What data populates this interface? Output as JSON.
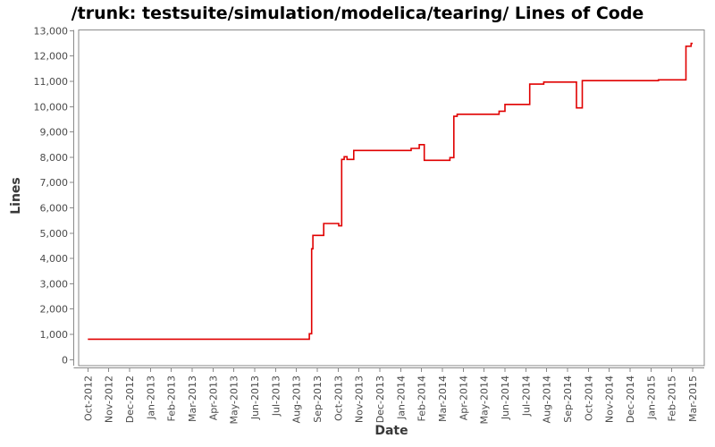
{
  "page": {
    "background": "#ffffff"
  },
  "chart_data": {
    "type": "line",
    "title": "/trunk: testsuite/simulation/modelica/tearing/ Lines of Code",
    "xlabel": "Date",
    "ylabel": "Lines",
    "ylim": [
      0,
      13000
    ],
    "y_tick_step": 1000,
    "y_tick_labels": [
      "0",
      "1,000",
      "2,000",
      "3,000",
      "4,000",
      "5,000",
      "6,000",
      "7,000",
      "8,000",
      "9,000",
      "10,000",
      "11,000",
      "12,000",
      "13,000"
    ],
    "x_tick_labels": [
      "Oct-2012",
      "Nov-2012",
      "Dec-2012",
      "Jan-2013",
      "Feb-2013",
      "Mar-2013",
      "Apr-2013",
      "May-2013",
      "Jun-2013",
      "Jul-2013",
      "Aug-2013",
      "Sep-2013",
      "Oct-2013",
      "Nov-2013",
      "Dec-2013",
      "Jan-2014",
      "Feb-2014",
      "Mar-2014",
      "Apr-2014",
      "May-2014",
      "Jun-2014",
      "Jul-2014",
      "Aug-2014",
      "Sep-2014",
      "Oct-2014",
      "Nov-2014",
      "Dec-2014",
      "Jan-2015",
      "Feb-2015",
      "Mar-2015"
    ],
    "grid": false,
    "legend": false,
    "axis_color": "#8a8a8a",
    "tick_label_color": "#4a4a4a",
    "series": [
      {
        "name": "Lines of Code",
        "color": "#e00000",
        "x_unit_note": "x = months after Oct-2012 (fractional), y = lines of code",
        "points": [
          [
            0,
            810
          ],
          [
            10.62,
            810
          ],
          [
            10.62,
            1025
          ],
          [
            10.73,
            1025
          ],
          [
            10.73,
            4380
          ],
          [
            10.79,
            4380
          ],
          [
            10.79,
            4910
          ],
          [
            11.31,
            4910
          ],
          [
            11.31,
            5380
          ],
          [
            12.03,
            5380
          ],
          [
            12.03,
            5290
          ],
          [
            12.17,
            5290
          ],
          [
            12.17,
            7915
          ],
          [
            12.29,
            7915
          ],
          [
            12.29,
            8020
          ],
          [
            12.43,
            8020
          ],
          [
            12.43,
            7915
          ],
          [
            12.75,
            7915
          ],
          [
            12.75,
            8270
          ],
          [
            15.5,
            8270
          ],
          [
            15.5,
            8350
          ],
          [
            15.89,
            8350
          ],
          [
            15.89,
            8500
          ],
          [
            16.13,
            8500
          ],
          [
            16.13,
            7880
          ],
          [
            17.36,
            7880
          ],
          [
            17.36,
            7985
          ],
          [
            17.55,
            7985
          ],
          [
            17.55,
            9620
          ],
          [
            17.71,
            9620
          ],
          [
            17.71,
            9700
          ],
          [
            19.72,
            9700
          ],
          [
            19.72,
            9820
          ],
          [
            20.0,
            9820
          ],
          [
            20.0,
            10090
          ],
          [
            21.19,
            10090
          ],
          [
            21.19,
            10890
          ],
          [
            21.86,
            10890
          ],
          [
            21.86,
            10970
          ],
          [
            23.43,
            10970
          ],
          [
            23.43,
            9950
          ],
          [
            23.71,
            9950
          ],
          [
            23.71,
            11030
          ],
          [
            27.36,
            11030
          ],
          [
            27.36,
            11060
          ],
          [
            28.68,
            11060
          ],
          [
            28.68,
            12390
          ],
          [
            28.93,
            12390
          ],
          [
            28.93,
            12500
          ],
          [
            29.0,
            12500
          ]
        ]
      }
    ]
  }
}
